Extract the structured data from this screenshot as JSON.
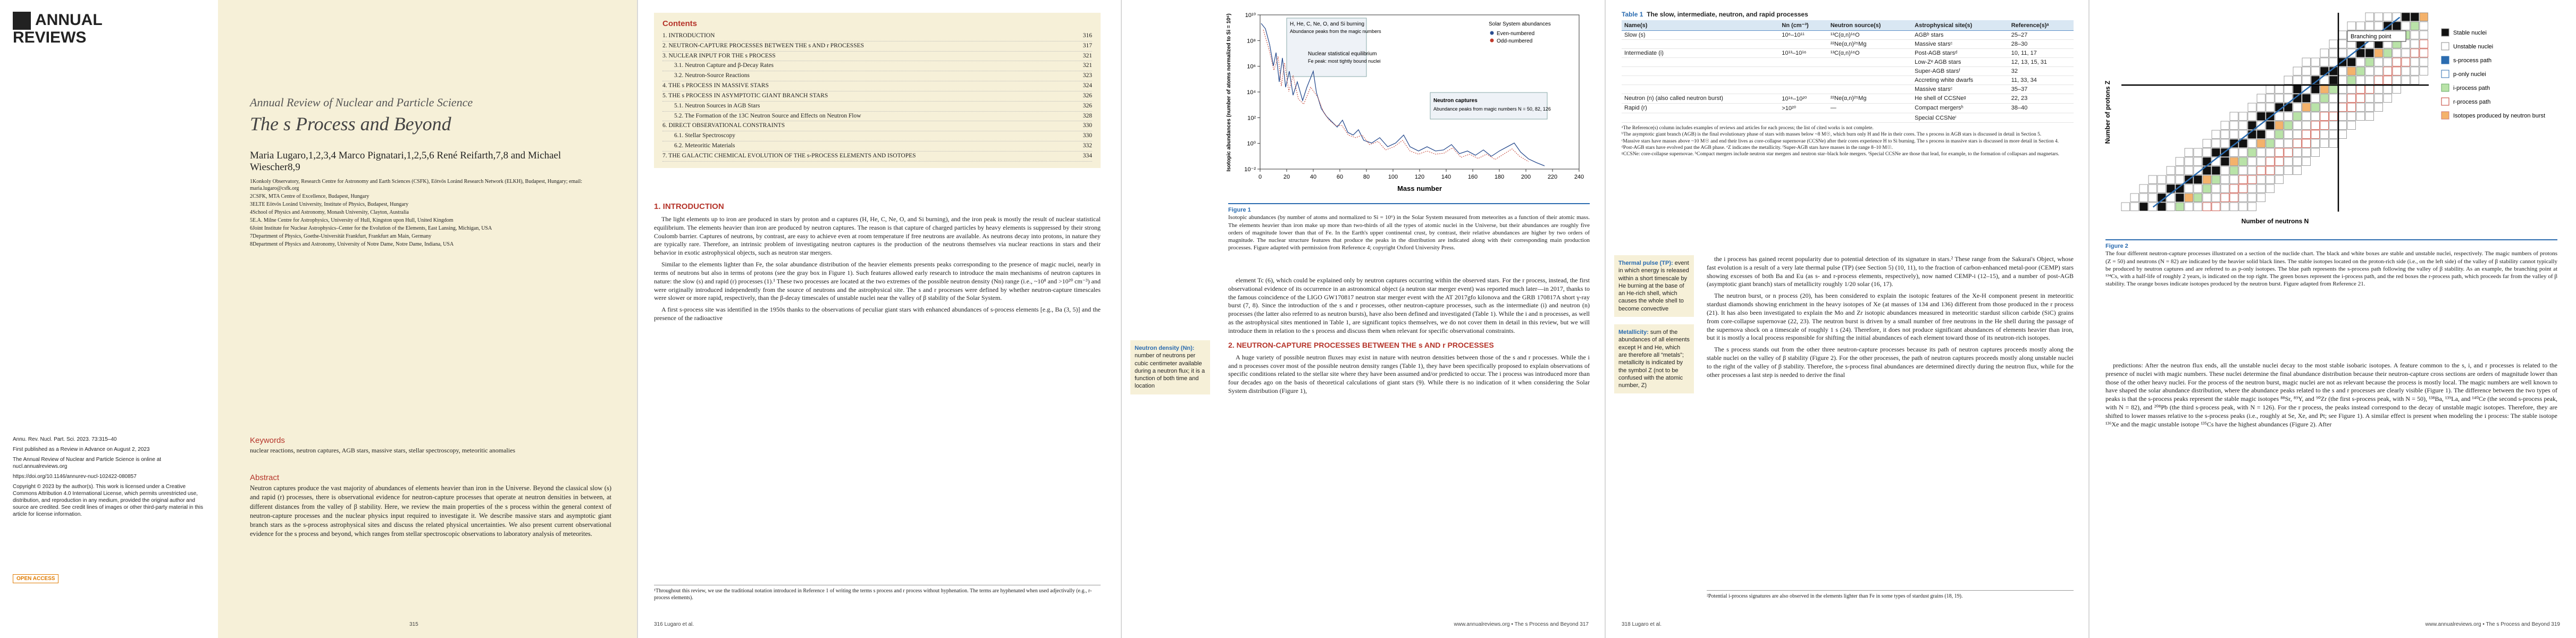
{
  "page315": {
    "logo": "ANNUAL REVIEWS",
    "series": "Annual Review of Nuclear and Particle Science",
    "title": "The s Process and Beyond",
    "authors": "Maria Lugaro,1,2,3,4 Marco Pignatari,1,2,5,6 René Reifarth,7,8 and Michael Wiescher8,9",
    "affiliations": [
      "1Konkoly Observatory, Research Centre for Astronomy and Earth Sciences (CSFK), Eötvös Loránd Research Network (ELKH), Budapest, Hungary; email: maria.lugaro@csfk.org",
      "2CSFK, MTA Centre of Excellence, Budapest, Hungary",
      "3ELTE Eötvös Loránd University, Institute of Physics, Budapest, Hungary",
      "4School of Physics and Astronomy, Monash University, Clayton, Australia",
      "5E.A. Milne Centre for Astrophysics, University of Hull, Kingston upon Hull, United Kingdom",
      "6Joint Institute for Nuclear Astrophysics–Center for the Evolution of the Elements, East Lansing, Michigan, USA",
      "7Department of Physics, Goethe-Universität Frankfurt, Frankfurt am Main, Germany",
      "8Department of Physics and Astronomy, University of Notre Dame, Notre Dame, Indiana, USA"
    ],
    "citation": [
      "Annu. Rev. Nucl. Part. Sci. 2023. 73:315–40",
      "First published as a Review in Advance on August 2, 2023",
      "The Annual Review of Nuclear and Particle Science is online at nucl.annualreviews.org",
      "https://doi.org/10.1146/annurev-nucl-102422-080857",
      "Copyright © 2023 by the author(s). This work is licensed under a Creative Commons Attribution 4.0 International License, which permits unrestricted use, distribution, and reproduction in any medium, provided the original author and source are credited. See credit lines of images or other third-party material in this article for license information."
    ],
    "open_access": "OPEN ACCESS",
    "keywords_heading": "Keywords",
    "keywords": "nuclear reactions, neutron captures, AGB stars, massive stars, stellar spectroscopy, meteoritic anomalies",
    "abstract_heading": "Abstract",
    "abstract": "Neutron captures produce the vast majority of abundances of elements heavier than iron in the Universe. Beyond the classical slow (s) and rapid (r) processes, there is observational evidence for neutron-capture processes that operate at neutron densities in between, at different distances from the valley of β stability. Here, we review the main properties of the s process within the general context of neutron-capture processes and the nuclear physics input required to investigate it. We describe massive stars and asymptotic giant branch stars as the s-process astrophysical sites and discuss the related physical uncertainties. We also present current observational evidence for the s process and beyond, which ranges from stellar spectroscopic observations to laboratory analysis of meteorites.",
    "page_number": "315"
  },
  "page316": {
    "contents_heading": "Contents",
    "contents": [
      [
        "1. INTRODUCTION",
        "316"
      ],
      [
        "2. NEUTRON-CAPTURE PROCESSES BETWEEN THE s AND r PROCESSES",
        "317"
      ],
      [
        "3. NUCLEAR INPUT FOR THE s PROCESS",
        "321"
      ],
      [
        "3.1. Neutron Capture and β-Decay Rates",
        "321"
      ],
      [
        "3.2. Neutron-Source Reactions",
        "323"
      ],
      [
        "4. THE s PROCESS IN MASSIVE STARS",
        "324"
      ],
      [
        "5. THE s PROCESS IN ASYMPTOTIC GIANT BRANCH STARS",
        "326"
      ],
      [
        "5.1. Neutron Sources in AGB Stars",
        "326"
      ],
      [
        "5.2. The Formation of the 13C Neutron Source and Effects on Neutron Flow",
        "328"
      ],
      [
        "6. DIRECT OBSERVATIONAL CONSTRAINTS",
        "330"
      ],
      [
        "6.1. Stellar Spectroscopy",
        "330"
      ],
      [
        "6.2. Meteoritic Materials",
        "332"
      ],
      [
        "7. THE GALACTIC CHEMICAL EVOLUTION OF THE s-PROCESS ELEMENTS AND ISOTOPES",
        "334"
      ]
    ],
    "section_heading": "1. INTRODUCTION",
    "paragraphs": [
      "The light elements up to iron are produced in stars by proton and α captures (H, He, C, Ne, O, and Si burning), and the iron peak is mostly the result of nuclear statistical equilibrium. The elements heavier than iron are produced by neutron captures. The reason is that capture of charged particles by heavy elements is suppressed by their strong Coulomb barrier. Captures of neutrons, by contrast, are easy to achieve even at room temperature if free neutrons are available. As neutrons decay into protons, in nature they are typically rare. Therefore, an intrinsic problem of investigating neutron captures is the production of the neutrons themselves via nuclear reactions in stars and their behavior in exotic astrophysical objects, such as neutron star mergers.",
      "Similar to the elements lighter than Fe, the solar abundance distribution of the heavier elements presents peaks corresponding to the presence of magic nuclei, nearly in terms of neutrons but also in terms of protons (see the gray box in Figure 1). Such features allowed early research to introduce the main mechanisms of neutron captures in nature: the slow (s) and rapid (r) processes (1).¹ These two processes are located at the two extremes of the possible neutron density (Nn) range (i.e., ~10⁸ and >10²⁰ cm⁻³) and were originally introduced independently from the source of neutrons and the astrophysical site. The s and r processes were defined by whether neutron-capture timescales were slower or more rapid, respectively, than the β-decay timescales of unstable nuclei near the valley of β stability of the Solar System.",
      "A first s-process site was identified in the 1950s thanks to the observations of peculiar giant stars with enhanced abundances of s-process elements [e.g., Ba (3, 5)] and the presence of the radioactive"
    ],
    "footnote": "¹Throughout this review, we use the traditional notation introduced in Reference 1 of writing the terms s process and r process without hyphenation. The terms are hyphenated when used adjectivally (e.g., r-process elements).",
    "footer": "316   Lugaro et al."
  },
  "page317": {
    "sidebar_term": "Neutron density (Nn):",
    "sidebar_text": "number of neutrons per cubic centimeter available during a neutron flux; it is a function of both time and location",
    "figure": {
      "y_label": "Isotopic abundances (number of atoms normalized to Si = 10⁶)",
      "x_label": "Mass number",
      "x_ticks": [
        "0",
        "20",
        "40",
        "60",
        "80",
        "100",
        "120",
        "140",
        "160",
        "180",
        "200",
        "220",
        "240"
      ],
      "y_ticks": [
        "10⁻²",
        "10⁰",
        "10²",
        "10⁴",
        "10⁶",
        "10⁸",
        "10¹⁰"
      ],
      "burning": "H, He, C, Ne, O, and Si burning",
      "peaks": "Abundance peaks from the magic numbers",
      "nse": "Nuclear statistical equilibrium",
      "nse_note": "Fe peak: most tightly bound nuclei",
      "legend_title": "Solar System abundances",
      "legend": [
        "Even-numbered",
        "Odd-numbered"
      ],
      "captures": "Neutron captures",
      "captures_note": "Abundance peaks from magic numbers N = 50, 82, 126"
    },
    "caption_label": "Figure 1",
    "caption": "Isotopic abundances (by number of atoms and normalized to Si = 10⁶) in the Solar System measured from meteorites as a function of their atomic mass. The elements heavier than iron make up more than two-thirds of all the types of atomic nuclei in the Universe, but their abundances are roughly five orders of magnitude lower than that of Fe. In the Earth's upper continental crust, by contrast, their relative abundances are higher by two orders of magnitude. The nuclear structure features that produce the peaks in the distribution are indicated along with their corresponding main production processes. Figure adapted with permission from Reference 4; copyright Oxford University Press.",
    "paragraphs": [
      "element Tc (6), which could be explained only by neutron captures occurring within the observed stars. For the r process, instead, the first observational evidence of its occurrence in an astronomical object (a neutron star merger event) was reported much later—in 2017, thanks to the famous coincidence of the LIGO GW170817 neutron star merger event with the AT 2017gfo kilonova and the GRB 170817A short γ-ray burst (7, 8). Since the introduction of the s and r processes, other neutron-capture processes, such as the intermediate (i) and neutron (n) processes (the latter also referred to as neutron bursts), have also been defined and investigated (Table 1). While the i and n processes, as well as the astrophysical sites mentioned in Table 1, are significant topics themselves, we do not cover them in detail in this review, but we will introduce them in relation to the s process and discuss them when relevant for specific observational constraints."
    ],
    "section_heading": "2. NEUTRON-CAPTURE PROCESSES BETWEEN THE s AND r PROCESSES",
    "paragraphs2": [
      "A huge variety of possible neutron fluxes may exist in nature with neutron densities between those of the s and r processes. While the i and n processes cover most of the possible neutron density ranges (Table 1), they have been specifically proposed to explain observations of specific conditions related to the stellar site where they have been assumed and/or predicted to occur. The i process was introduced more than four decades ago on the basis of theoretical calculations of giant stars (9). While there is no indication of it when considering the Solar System distribution (Figure 1),"
    ],
    "footer": "www.annualreviews.org • The s Process and Beyond   317"
  },
  "page318": {
    "table": {
      "label": "Table 1",
      "title": "The slow, intermediate, neutron, and rapid processes",
      "header": [
        "Name(s)",
        "Nn (cm⁻³)",
        "Neutron source(s)",
        "Astrophysical site(s)",
        "Reference(s)ᵃ"
      ],
      "rows": [
        [
          "Slow (s)",
          "10⁶–10¹¹",
          "¹³C(α,n)¹⁶O",
          "AGBᵇ stars",
          "25–27"
        ],
        [
          "",
          "",
          "²²Ne(α,n)²⁵Mg",
          "Massive starsᶜ",
          "28–30"
        ],
        [
          "Intermediate (i)",
          "10¹³–10¹⁶",
          "¹³C(α,n)¹⁶O",
          "Post-AGB starsᵈ",
          "10, 11, 17"
        ],
        [
          "",
          "",
          "",
          "Low-Zᵉ AGB stars",
          "12, 13, 15, 31"
        ],
        [
          "",
          "",
          "",
          "Super-AGB starsᶠ",
          "32"
        ],
        [
          "",
          "",
          "",
          "Accreting white dwarfs",
          "11, 33, 34"
        ],
        [
          "",
          "",
          "",
          "Massive starsᶜ",
          "35–37"
        ],
        [
          "Neutron (n) (also called neutron burst)",
          "10¹⁸–10²⁰",
          "²²Ne(α,n)²⁵Mg",
          "He shell of CCSNeᵍ",
          "22, 23"
        ],
        [
          "Rapid (r)",
          ">10²⁰",
          "—",
          "Compact mergersʰ",
          "38–40"
        ],
        [
          "",
          "",
          "",
          "Special CCSNeⁱ",
          ""
        ]
      ]
    },
    "table_notes": [
      "ᵃThe Reference(s) column includes examples of reviews and articles for each process; the list of cited works is not complete.",
      "ᵇThe asymptotic giant branch (AGB) is the final evolutionary phase of stars with masses below ~8 M☉, which burn only H and He in their cores. The s process in AGB stars is discussed in detail in Section 5.",
      "ᶜMassive stars have masses above ~10 M☉ and end their lives as core-collapse supernovae (CCSNe) after their cores experience H to Si burning. The s process in massive stars is discussed in more detail in Section 4.",
      "ᵈPost-AGB stars have evolved past the AGB phase. ᵉZ indicates the metallicity. ᶠSuper-AGB stars have masses in the range 8–10 M☉.",
      "ᵍCCSNe: core-collapse supernovae. ʰCompact mergers include neutron star mergers and neutron star–black hole mergers. ⁱSpecial CCSNe are those that lead, for example, to the formation of collapsars and magnetars."
    ],
    "sidebar": [
      [
        "Thermal pulse (TP):",
        "event in which energy is released within a short timescale by He burning at the base of an He-rich shell, which causes the whole shell to become convective"
      ],
      [
        "Metallicity:",
        "sum of the abundances of all elements except H and He, which are therefore all “metals”; metallicity is indicated by the symbol Z (not to be confused with the atomic number, Z)"
      ]
    ],
    "paragraphs": [
      "the i process has gained recent popularity due to potential detection of its signature in stars.² These range from the Sakurai's Object, whose fast evolution is a result of a very late thermal pulse (TP) (see Section 5) (10, 11), to the fraction of carbon-enhanced metal-poor (CEMP) stars showing excesses of both Ba and Eu (as s- and r-process elements, respectively), now named CEMP-i (12–15), and a number of post-AGB (asymptotic giant branch) stars of metallicity roughly 1/20 solar (16, 17).",
      "The neutron burst, or n process (20), has been considered to explain the isotopic features of the Xe-H component present in meteoritic stardust diamonds showing enrichment in the heavy isotopes of Xe (at masses of 134 and 136) different from those produced in the r process (21). It has also been investigated to explain the Mo and Zr isotopic abundances measured in meteoritic stardust silicon carbide (SiC) grains from core-collapse supernovae (22, 23). The neutron burst is driven by a small number of free neutrons in the He shell during the passage of the supernova shock on a timescale of roughly 1 s (24). Therefore, it does not produce significant abundances of elements heavier than iron, but it is mostly a local process responsible for shifting the initial abundances of each element toward those of its neutron-rich isotopes.",
      "The s process stands out from the other three neutron-capture processes because its path of neutron captures proceeds mostly along the stable nuclei on the valley of β stability (Figure 2). For the other processes, the path of neutron captures proceeds mostly along unstable nuclei to the right of the valley of β stability. Therefore, the s-process final abundances are determined directly during the neutron flux, while for the other processes a last step is needed to derive the final"
    ],
    "footnote": "²Potential i-process signatures are also observed in the elements lighter than Fe in some types of stardust grains (18, 19).",
    "footer": "318   Lugaro et al."
  },
  "page319": {
    "figure": {
      "x_label": "Number of neutrons N",
      "y_label": "Number of protons Z",
      "branching": "Branching point",
      "legend": [
        "Stable nuclei",
        "Unstable nuclei",
        "s-process path",
        "p-only nuclei",
        "i-process path",
        "r-process path",
        "Isotopes produced by neutron burst"
      ]
    },
    "caption_label": "Figure 2",
    "caption": "The four different neutron-capture processes illustrated on a section of the nuclide chart. The black and white boxes are stable and unstable nuclei, respectively. The magic numbers of protons (Z = 50) and neutrons (N = 82) are indicated by the heavier solid black lines. The stable isotopes located on the proton-rich side (i.e., on the left side) of the valley of β stability cannot typically be produced by neutron captures and are referred to as p-only isotopes. The blue path represents the s-process path following the valley of β stability. As an example, the branching point at ¹³⁴Cs, with a half-life of roughly 2 years, is indicated on the top right. The green boxes represent the i-process path, and the red boxes the r-process path, which proceeds far from the valley of β stability. The orange boxes indicate isotopes produced by the neutron burst. Figure adapted from Reference 21.",
    "paragraphs": [
      "predictions: After the neutron flux ends, all the unstable nuclei decay to the most stable isobaric isotopes. A feature common to the s, i, and r processes is related to the presence of nuclei with magic numbers. These nuclei determine the final abundance distribution because their neutron-capture cross sections are orders of magnitude lower than those of the other heavy nuclei. For the process of the neutron burst, magic nuclei are not as relevant because the process is mostly local. The magic numbers are well known to have shaped the solar abundance distribution, where the abundance peaks related to the s and r processes are clearly visible (Figure 1). The difference between the two types of peaks is that the s-process peaks represent the stable magic isotopes ⁸⁸Sr, ⁸⁹Y, and ⁹⁰Zr (the first s-process peak, with N = 50), ¹³⁸Ba, ¹³⁹La, and ¹⁴⁰Ce (the second s-process peak, with N = 82), and ²⁰⁸Pb (the third s-process peak, with N = 126). For the r process, the peaks instead correspond to the decay of unstable magic isotopes. Therefore, they are shifted to lower masses relative to the s-process peaks (i.e., roughly at Se, Xe, and Pt; see Figure 1). A similar effect is present when modeling the i process: The stable isotope ¹³⁶Xe and the magic unstable isotope ¹³⁵Cs have the highest abundances (Figure 2). After"
    ],
    "footer": "www.annualreviews.org • The s Process and Beyond   319"
  }
}
